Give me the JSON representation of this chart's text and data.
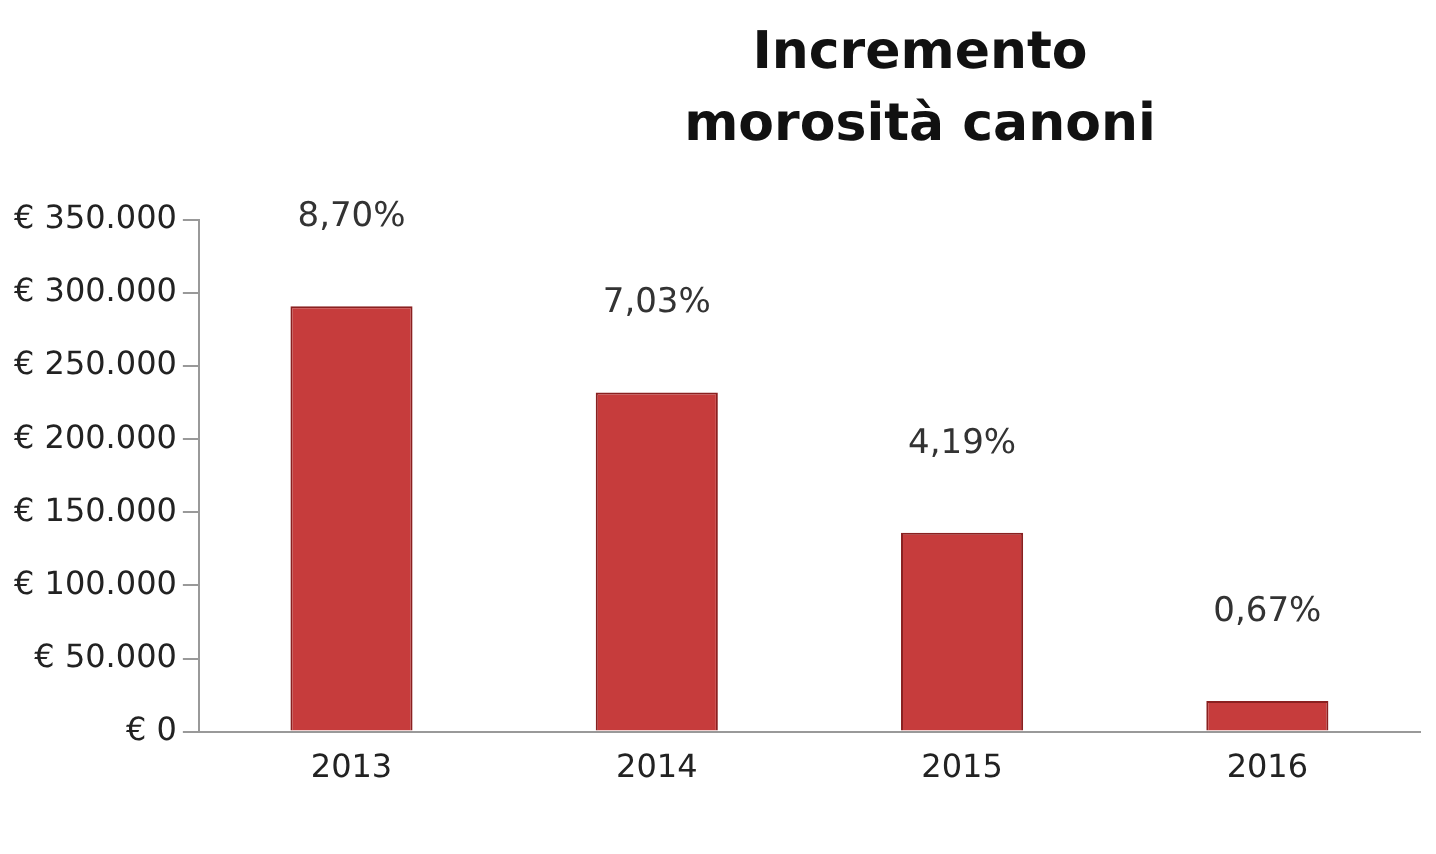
{
  "chart_data": {
    "type": "bar",
    "title": "Incremento morosità canoni",
    "categories": [
      "2013",
      "2014",
      "2015",
      "2016"
    ],
    "values": [
      291000,
      232000,
      136000,
      21000
    ],
    "color": "#c63c3c",
    "ylim": [
      0,
      350000
    ],
    "yticks": [
      {
        "value": 0,
        "label": "€ 0"
      },
      {
        "value": 50000,
        "label": "€ 50.000"
      },
      {
        "value": 100000,
        "label": "€ 100.000"
      },
      {
        "value": 150000,
        "label": "€ 150.000"
      },
      {
        "value": 200000,
        "label": "€ 200.000"
      },
      {
        "value": 250000,
        "label": "€ 250.000"
      },
      {
        "value": 300000,
        "label": "€ 300.000"
      },
      {
        "value": 350000,
        "label": "€ 350.000"
      }
    ],
    "grid": false,
    "annotations": [
      "8,70%",
      "7,03%",
      "4,19%",
      "0,67%"
    ]
  }
}
